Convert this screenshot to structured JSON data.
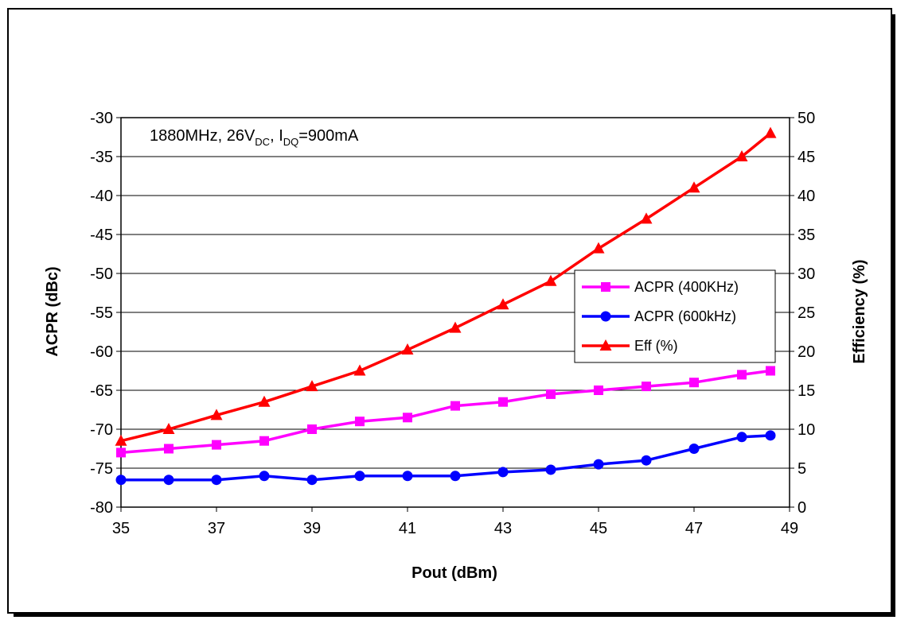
{
  "chart_data": {
    "type": "line",
    "annotation": {
      "main": "1880MHz, 26V",
      "sub1": "DC",
      "mid": ", I",
      "sub2": "DQ",
      "tail": "=900mA"
    },
    "xlabel": "Pout (dBm)",
    "ylabel_left": "ACPR (dBc)",
    "ylabel_right": "Efficiency (%)",
    "xlim": [
      35,
      49
    ],
    "ylim_left": [
      -80,
      -30
    ],
    "ylim_right": [
      0,
      50
    ],
    "x_ticks": [
      "35",
      "37",
      "39",
      "41",
      "43",
      "45",
      "47",
      "49"
    ],
    "y_left_ticks": [
      "-30",
      "-35",
      "-40",
      "-45",
      "-50",
      "-55",
      "-60",
      "-65",
      "-70",
      "-75",
      "-80"
    ],
    "y_right_ticks": [
      "50",
      "45",
      "40",
      "35",
      "30",
      "25",
      "20",
      "15",
      "10",
      "5",
      "0"
    ],
    "grid": true,
    "legend_position": "right-middle",
    "series": [
      {
        "name": "ACPR (400KHz)",
        "axis": "left",
        "color": "#ff00ff",
        "marker": "square",
        "x": [
          35,
          36,
          37,
          38,
          39,
          40,
          41,
          42,
          43,
          44,
          45,
          46,
          47,
          48,
          48.6
        ],
        "y": [
          -73,
          -72.5,
          -72,
          -71.5,
          -70,
          -69,
          -68.5,
          -67,
          -66.5,
          -65.5,
          -65,
          -64.5,
          -64,
          -63,
          -62.5
        ]
      },
      {
        "name": "ACPR (600kHz)",
        "axis": "left",
        "color": "#0000ff",
        "marker": "circle",
        "x": [
          35,
          36,
          37,
          38,
          39,
          40,
          41,
          42,
          43,
          44,
          45,
          46,
          47,
          48,
          48.6
        ],
        "y": [
          -76.5,
          -76.5,
          -76.5,
          -76,
          -76.5,
          -76,
          -76,
          -76,
          -75.5,
          -75.2,
          -74.5,
          -74,
          -72.5,
          -71,
          -70.8
        ]
      },
      {
        "name": "Eff (%)",
        "axis": "right",
        "color": "#ff0000",
        "marker": "triangle",
        "x": [
          35,
          36,
          37,
          38,
          39,
          40,
          41,
          42,
          43,
          44,
          45,
          46,
          47,
          48,
          48.6
        ],
        "y": [
          8.5,
          10,
          11.8,
          13.5,
          15.5,
          17.5,
          20.2,
          23,
          26,
          29,
          33.2,
          37,
          41,
          45,
          48
        ]
      }
    ]
  }
}
